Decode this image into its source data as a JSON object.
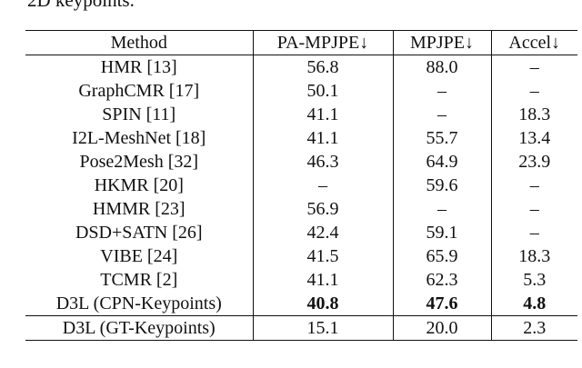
{
  "caption_fragment": "2D keypoints.",
  "table": {
    "header": [
      "Method",
      "PA-MPJPE↓",
      "MPJPE↓",
      "Accel↓"
    ],
    "rows": [
      [
        "HMR [13]",
        "56.8",
        "88.0",
        "–"
      ],
      [
        "GraphCMR [17]",
        "50.1",
        "–",
        "–"
      ],
      [
        "SPIN [11]",
        "41.1",
        "–",
        "18.3"
      ],
      [
        "I2L-MeshNet [18]",
        "41.1",
        "55.7",
        "13.4"
      ],
      [
        "Pose2Mesh [32]",
        "46.3",
        "64.9",
        "23.9"
      ],
      [
        "HKMR [20]",
        "–",
        "59.6",
        "–"
      ],
      [
        "HMMR [23]",
        "56.9",
        "–",
        "–"
      ],
      [
        "DSD+SATN [26]",
        "42.4",
        "59.1",
        "–"
      ],
      [
        "VIBE [24]",
        "41.5",
        "65.9",
        "18.3"
      ],
      [
        "TCMR [2]",
        "41.1",
        "62.3",
        "5.3"
      ],
      [
        "D3L (CPN-Keypoints)",
        "40.8",
        "47.6",
        "4.8"
      ],
      [
        "D3L (GT-Keypoints)",
        "15.1",
        "20.0",
        "2.3"
      ]
    ]
  }
}
